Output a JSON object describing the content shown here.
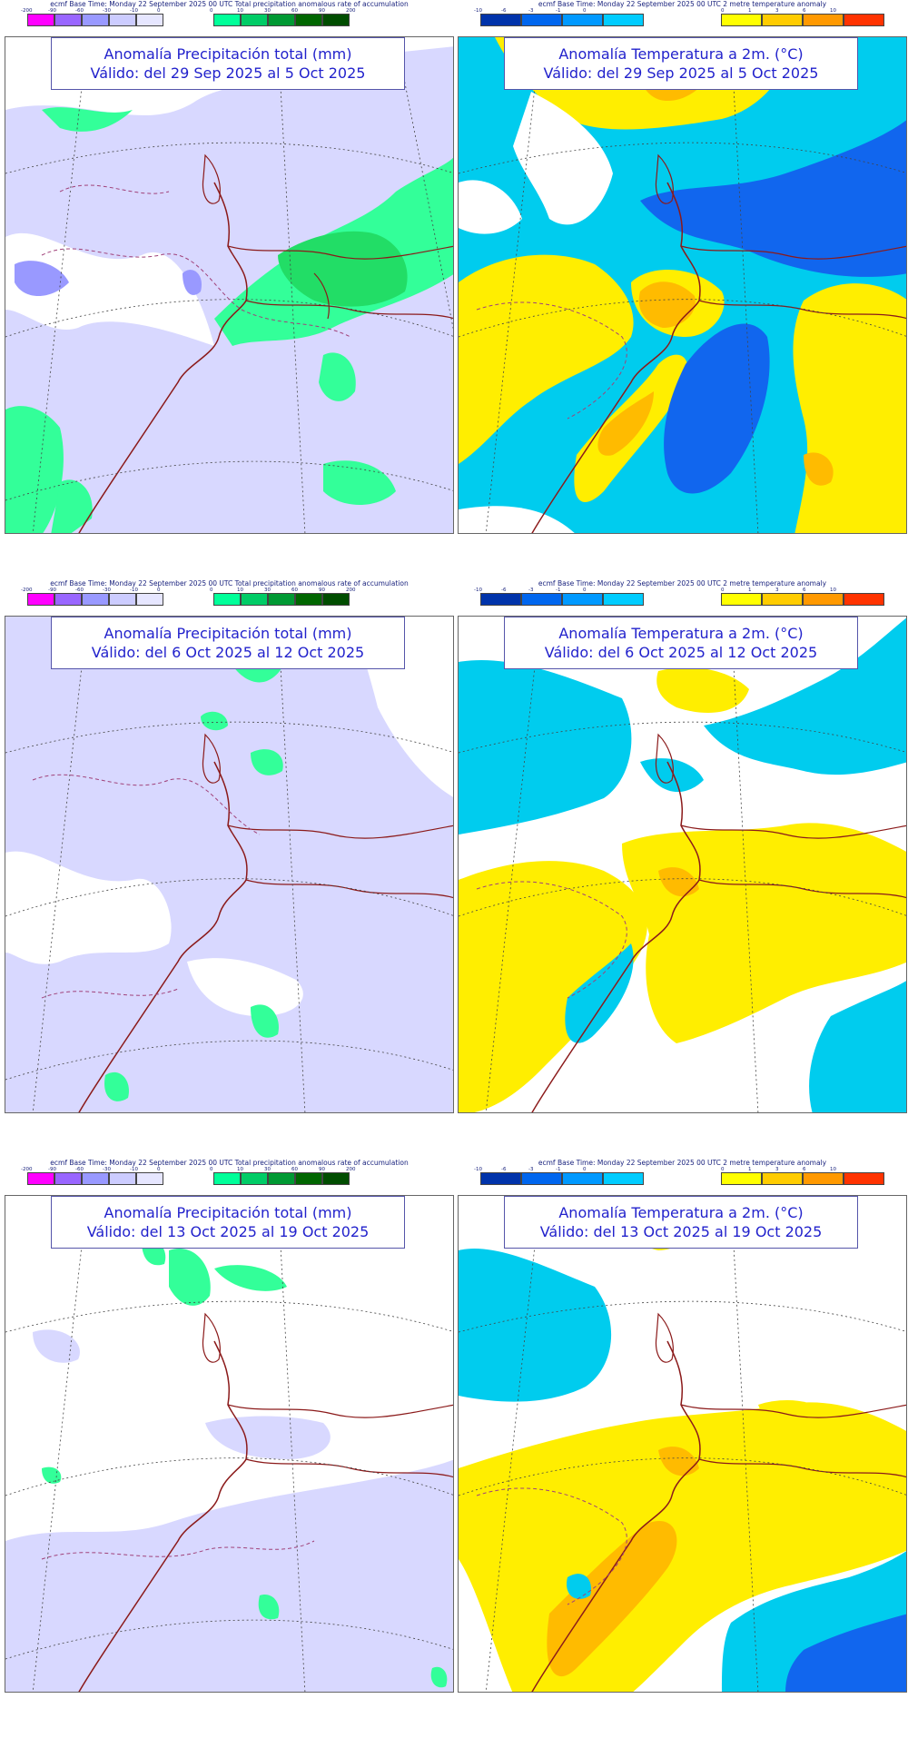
{
  "base_times": {
    "precip": "ecmf  Base Time: Monday 22 September 2025 00 UTC Total precipitation anomalous rate of accumulation",
    "temp": "ecmf  Base Time: Monday 22 September 2025 00 UTC 2 metre temperature anomaly"
  },
  "legends": {
    "precip_neg": {
      "ticks": [
        "-200",
        "-90",
        "-60",
        "-30",
        "-10",
        "0"
      ],
      "colors": [
        "#ff00ff",
        "#9966ff",
        "#9999ff",
        "#ccccff",
        "#e6e6ff"
      ]
    },
    "precip_pos": {
      "ticks": [
        "0",
        "10",
        "30",
        "60",
        "90",
        "200"
      ],
      "colors": [
        "#00ff99",
        "#00cc66",
        "#009933",
        "#006600",
        "#004d00"
      ]
    },
    "temp_neg": {
      "ticks": [
        "-10",
        "-6",
        "-3",
        "-1",
        "0"
      ],
      "colors": [
        "#0033aa",
        "#0066ee",
        "#0099ff",
        "#00ccff"
      ]
    },
    "temp_pos": {
      "ticks": [
        "0",
        "1",
        "3",
        "6",
        "10"
      ],
      "colors": [
        "#ffff00",
        "#ffcc00",
        "#ff9900",
        "#ff3300"
      ]
    }
  },
  "colors": {
    "precip_dry": "#d8d8ff",
    "precip_wet": "#33ff99",
    "precip_wet2": "#22dd66",
    "temp_cold": "#00ccee",
    "temp_cold2": "#1166ee",
    "temp_warm": "#ffee00",
    "temp_warm2": "#ffbb00",
    "coast": "#8b1a1a"
  },
  "panels": [
    {
      "kind": "precip",
      "title_line1": "Anomalía Precipitación total (mm)",
      "title_line2": "Válido: del 29 Sep 2025 al 5 Oct 2025"
    },
    {
      "kind": "temp",
      "title_line1": "Anomalía Temperatura a 2m. (°C)",
      "title_line2": "Válido: del 29 Sep 2025 al 5 Oct 2025"
    },
    {
      "kind": "precip",
      "title_line1": "Anomalía Precipitación total (mm)",
      "title_line2": "Válido: del 6 Oct 2025 al 12 Oct 2025"
    },
    {
      "kind": "temp",
      "title_line1": "Anomalía Temperatura a 2m. (°C)",
      "title_line2": "Válido: del 6 Oct 2025 al 12 Oct 2025"
    },
    {
      "kind": "precip",
      "title_line1": "Anomalía Precipitación total (mm)",
      "title_line2": "Válido: del 13 Oct 2025 al 19 Oct 2025"
    },
    {
      "kind": "temp",
      "title_line1": "Anomalía Temperatura a 2m. (°C)",
      "title_line2": "Válido: del 13 Oct 2025 al 19 Oct 2025"
    }
  ]
}
